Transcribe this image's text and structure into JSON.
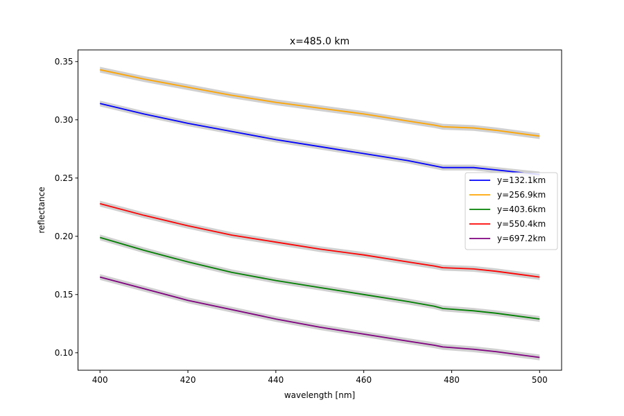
{
  "chart_data": {
    "type": "line",
    "title": "x=485.0 km",
    "xlabel": "wavelength [nm]",
    "ylabel": "reflectance",
    "xlim": [
      395,
      505
    ],
    "ylim": [
      0.085,
      0.36
    ],
    "xticks": [
      400,
      420,
      440,
      460,
      480,
      500
    ],
    "xtick_labels": [
      "400",
      "420",
      "440",
      "460",
      "480",
      "500"
    ],
    "yticks": [
      0.1,
      0.15,
      0.2,
      0.25,
      0.3,
      0.35
    ],
    "ytick_labels": [
      "0.10",
      "0.15",
      "0.20",
      "0.25",
      "0.30",
      "0.35"
    ],
    "grid": false,
    "legend_position": "right",
    "uncertainty_band": true,
    "band_color": "#b0b0b0",
    "x": [
      400,
      410,
      420,
      430,
      440,
      450,
      460,
      470,
      476,
      478,
      485,
      490,
      500
    ],
    "series": [
      {
        "name": "y=132.1km",
        "color": "#0000ff",
        "values": [
          0.314,
          0.305,
          0.297,
          0.29,
          0.283,
          0.277,
          0.271,
          0.265,
          0.2605,
          0.259,
          0.259,
          0.257,
          0.253
        ]
      },
      {
        "name": "y=256.9km",
        "color": "#ffa500",
        "values": [
          0.343,
          0.335,
          0.328,
          0.321,
          0.315,
          0.31,
          0.305,
          0.299,
          0.2955,
          0.294,
          0.293,
          0.291,
          0.286
        ]
      },
      {
        "name": "y=403.6km",
        "color": "#008000",
        "values": [
          0.199,
          0.188,
          0.178,
          0.169,
          0.162,
          0.156,
          0.15,
          0.144,
          0.14,
          0.138,
          0.136,
          0.134,
          0.129
        ]
      },
      {
        "name": "y=550.4km",
        "color": "#ff0000",
        "values": [
          0.228,
          0.218,
          0.209,
          0.201,
          0.195,
          0.189,
          0.184,
          0.178,
          0.1745,
          0.173,
          0.172,
          0.17,
          0.165
        ]
      },
      {
        "name": "y=697.2km",
        "color": "#800080",
        "values": [
          0.165,
          0.155,
          0.145,
          0.137,
          0.129,
          0.122,
          0.116,
          0.11,
          0.1065,
          0.105,
          0.103,
          0.101,
          0.096
        ]
      }
    ]
  }
}
